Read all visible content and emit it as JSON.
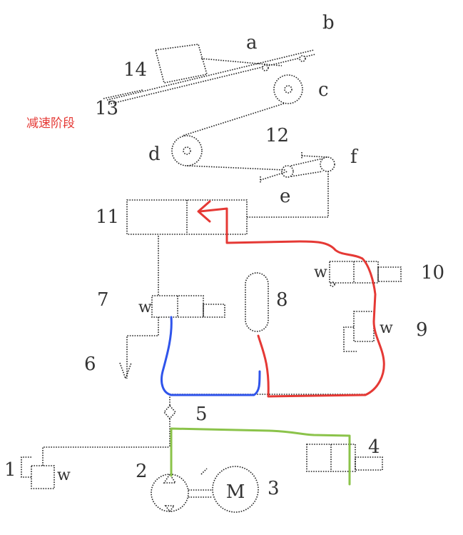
{
  "stage_label": "减速阶段",
  "component_labels": {
    "a": "a",
    "b": "b",
    "c": "c",
    "d": "d",
    "e": "e",
    "f": "f",
    "n1": "1",
    "n2": "2",
    "n3": "3",
    "n4": "4",
    "n5": "5",
    "n6": "6",
    "n7": "7",
    "n8": "8",
    "n9": "9",
    "n10": "10",
    "n11": "11",
    "n12": "12",
    "n13": "13",
    "n14": "14"
  },
  "symbol_letters": {
    "w": "w",
    "motor": "M"
  },
  "highlight_colors": {
    "red": "#e53935",
    "blue": "#2f54eb",
    "green": "#8bc34a"
  }
}
